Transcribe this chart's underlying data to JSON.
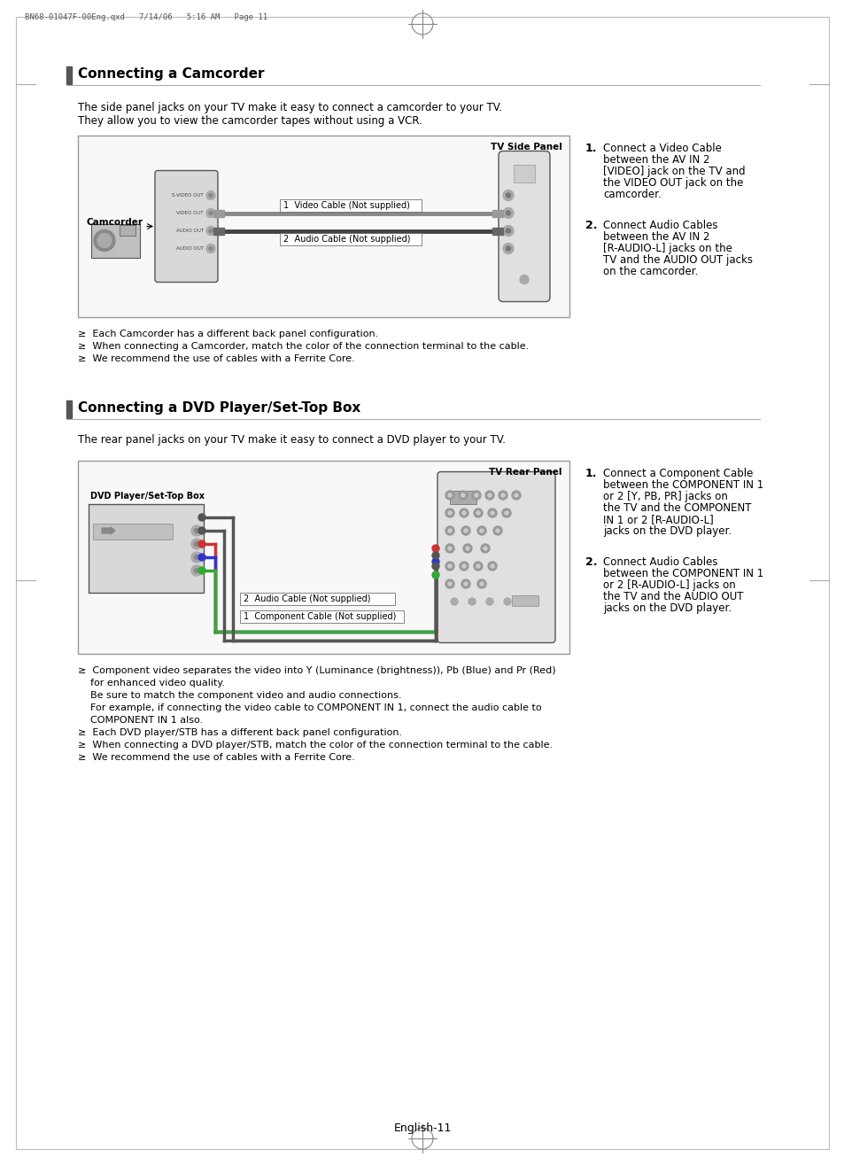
{
  "page_header": "BN68-01047F-00Eng.qxd   7/14/06   5:16 AM   Page 11",
  "section1_title": "Connecting a Camcorder",
  "section1_intro": [
    "The side panel jacks on your TV make it easy to connect a camcorder to your TV.",
    "They allow you to view the camcorder tapes without using a VCR."
  ],
  "section1_diagram_labels": {
    "tv_label": "TV Side Panel",
    "cam_label": "Camcorder",
    "cable1": "1  Video Cable (Not supplied)",
    "cable2": "2  Audio Cable (Not supplied)"
  },
  "section1_steps": [
    {
      "num": "1.",
      "text": "Connect a Video Cable between the AV IN 2 [VIDEO] jack on the TV and the VIDEO OUT jack on the camcorder."
    },
    {
      "num": "2.",
      "text": "Connect Audio Cables between the AV IN 2 [R-AUDIO-L] jacks on the TV and the AUDIO OUT jacks on the camcorder."
    }
  ],
  "section1_notes": [
    "≥  Each Camcorder has a different back panel configuration.",
    "≥  When connecting a Camcorder, match the color of the connection terminal to the cable.",
    "≥  We recommend the use of cables with a Ferrite Core."
  ],
  "section2_title": "Connecting a DVD Player/Set-Top Box",
  "section2_intro": "The rear panel jacks on your TV make it easy to connect a DVD player to your TV.",
  "section2_diagram_labels": {
    "tv_label": "TV Rear Panel",
    "dvd_label": "DVD Player/Set-Top Box",
    "cable1": "2  Audio Cable (Not supplied)",
    "cable2": "1  Component Cable (Not supplied)"
  },
  "section2_steps": [
    {
      "num": "1.",
      "text": "Connect a Component Cable between the COMPONENT IN 1 or 2 [Y, PB, PR] jacks on the TV and the COMPONENT IN 1 or 2 [R-AUDIO-L] jacks on the DVD player."
    },
    {
      "num": "2.",
      "text": "Connect Audio Cables between the COMPONENT IN 1 or 2 [R-AUDIO-L] jacks on the TV and the AUDIO OUT jacks on the DVD player."
    }
  ],
  "section2_notes": [
    "≥  Component video separates the video into Y (Luminance (brightness)), Pb (Blue) and Pr (Red)",
    "    for enhanced video quality.",
    "    Be sure to match the component video and audio connections.",
    "    For example, if connecting the video cable to COMPONENT IN 1, connect the audio cable to",
    "    COMPONENT IN 1 also.",
    "≥  Each DVD player/STB has a different back panel configuration.",
    "≥  When connecting a DVD player/STB, match the color of the connection terminal to the cable.",
    "≥  We recommend the use of cables with a Ferrite Core."
  ],
  "footer": "English-11",
  "bg_color": "#ffffff"
}
